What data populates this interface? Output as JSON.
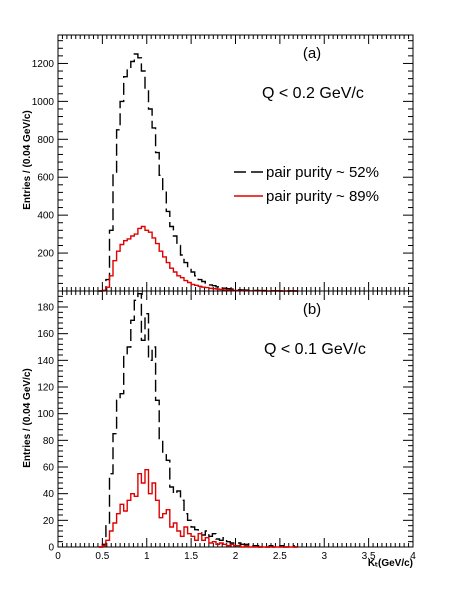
{
  "chart_data": [
    {
      "type": "histogram",
      "panel_label": "(a)",
      "annotation": "Q <  0.2 GeV/c",
      "ylabel": "Entries / (0.04 GeV/c)",
      "xlabel": "",
      "xlim": [
        0,
        4
      ],
      "ylim": [
        0,
        1350
      ],
      "bin_width": 0.04,
      "x_ticks": [],
      "y_ticks": [
        200,
        400,
        600,
        800,
        1000,
        1200
      ],
      "y_tick_labels": [
        "200",
        "400",
        "600",
        "800",
        "1000",
        "1200"
      ],
      "legend": {
        "position": "right-middle",
        "entries": [
          {
            "label": "pair purity ~ 52%",
            "color": "#000000",
            "style": "dashed"
          },
          {
            "label": "pair purity ~ 89%",
            "color": "#e00000",
            "style": "solid"
          }
        ]
      },
      "series": [
        {
          "name": "pair purity ~ 52%",
          "color": "#000000",
          "style": "dashed",
          "x": [
            0.46,
            0.5,
            0.54,
            0.58,
            0.62,
            0.66,
            0.7,
            0.74,
            0.78,
            0.82,
            0.86,
            0.9,
            0.94,
            0.98,
            1.02,
            1.06,
            1.1,
            1.14,
            1.18,
            1.22,
            1.26,
            1.3,
            1.34,
            1.38,
            1.42,
            1.46,
            1.5,
            1.54,
            1.58,
            1.62,
            1.66,
            1.7,
            1.74,
            1.78,
            1.82,
            1.86,
            1.9,
            1.94,
            1.98,
            2.02,
            2.06,
            2.1,
            2.14,
            2.18,
            2.22,
            2.26,
            2.3,
            2.34,
            2.38,
            2.42,
            2.46,
            2.5,
            2.54,
            2.58,
            2.62,
            2.66
          ],
          "values": [
            0,
            3,
            60,
            320,
            620,
            850,
            1000,
            1130,
            1170,
            1210,
            1250,
            1230,
            1160,
            1060,
            960,
            860,
            730,
            610,
            530,
            420,
            340,
            290,
            240,
            190,
            150,
            120,
            100,
            80,
            60,
            50,
            40,
            32,
            28,
            22,
            18,
            15,
            12,
            10,
            8,
            7,
            6,
            5,
            4,
            3,
            3,
            2,
            2,
            1,
            1,
            1,
            1,
            0,
            1,
            0,
            1,
            0
          ]
        },
        {
          "name": "pair purity ~ 89%",
          "color": "#e00000",
          "style": "solid",
          "x": [
            0.46,
            0.5,
            0.54,
            0.58,
            0.62,
            0.66,
            0.7,
            0.74,
            0.78,
            0.82,
            0.86,
            0.9,
            0.94,
            0.98,
            1.02,
            1.06,
            1.1,
            1.14,
            1.18,
            1.22,
            1.26,
            1.3,
            1.34,
            1.38,
            1.42,
            1.46,
            1.5,
            1.54,
            1.58,
            1.62,
            1.66,
            1.7,
            1.74,
            1.78,
            1.82,
            1.86,
            1.9,
            1.94,
            1.98,
            2.02,
            2.06,
            2.1,
            2.14,
            2.18,
            2.22,
            2.26,
            2.3,
            2.34,
            2.38,
            2.42,
            2.46,
            2.5,
            2.54,
            2.58,
            2.62,
            2.66
          ],
          "values": [
            0,
            2,
            20,
            80,
            160,
            210,
            245,
            265,
            275,
            290,
            300,
            330,
            340,
            320,
            310,
            280,
            250,
            210,
            180,
            150,
            120,
            100,
            80,
            70,
            55,
            45,
            35,
            30,
            25,
            20,
            18,
            14,
            12,
            10,
            8,
            6,
            5,
            4,
            3,
            3,
            2,
            2,
            1,
            1,
            1,
            1,
            0,
            0,
            0,
            0,
            0,
            0,
            0,
            0,
            0,
            0
          ]
        }
      ]
    },
    {
      "type": "histogram",
      "panel_label": "(b)",
      "annotation": "Q <  0.1 GeV/c",
      "ylabel": "Entries / (0.04 GeV/c)",
      "xlabel": "Kₜ(GeV/c)",
      "xlim": [
        0,
        4
      ],
      "ylim": [
        0,
        192
      ],
      "bin_width": 0.04,
      "x_ticks": [
        0,
        0.5,
        1,
        1.5,
        2,
        2.5,
        3,
        3.5,
        4
      ],
      "x_tick_labels": [
        "0",
        "0.5",
        "1",
        "1.5",
        "2",
        "2.5",
        "3",
        "3.5",
        "4"
      ],
      "y_ticks": [
        0,
        20,
        40,
        60,
        80,
        100,
        120,
        140,
        160,
        180
      ],
      "y_tick_labels": [
        "0",
        "20",
        "40",
        "60",
        "80",
        "100",
        "120",
        "140",
        "160",
        "180"
      ],
      "series": [
        {
          "name": "pair purity ~ 52%",
          "color": "#000000",
          "style": "dashed",
          "x": [
            0.46,
            0.5,
            0.54,
            0.58,
            0.62,
            0.66,
            0.7,
            0.74,
            0.78,
            0.82,
            0.86,
            0.9,
            0.94,
            0.98,
            1.02,
            1.06,
            1.1,
            1.14,
            1.18,
            1.22,
            1.26,
            1.3,
            1.34,
            1.38,
            1.42,
            1.46,
            1.5,
            1.54,
            1.58,
            1.62,
            1.66,
            1.7,
            1.74,
            1.78,
            1.82,
            1.86,
            1.9,
            1.94,
            1.98,
            2.02,
            2.06,
            2.1,
            2.14,
            2.18,
            2.22,
            2.26,
            2.3,
            2.34,
            2.38,
            2.42,
            2.46,
            2.5,
            2.54,
            2.58,
            2.62,
            2.66
          ],
          "values": [
            0,
            2,
            18,
            55,
            85,
            110,
            115,
            145,
            150,
            170,
            185,
            190,
            155,
            175,
            140,
            150,
            110,
            80,
            70,
            65,
            45,
            40,
            42,
            35,
            25,
            20,
            15,
            13,
            12,
            9,
            12,
            8,
            10,
            6,
            5,
            7,
            4,
            3,
            2,
            3,
            2,
            2,
            1,
            1,
            1,
            0,
            1,
            0,
            1,
            0,
            0,
            1,
            0,
            0,
            1,
            0
          ]
        },
        {
          "name": "pair purity ~ 89%",
          "color": "#e00000",
          "style": "solid",
          "x": [
            0.46,
            0.5,
            0.54,
            0.58,
            0.62,
            0.66,
            0.7,
            0.74,
            0.78,
            0.82,
            0.86,
            0.9,
            0.94,
            0.98,
            1.02,
            1.06,
            1.1,
            1.14,
            1.18,
            1.22,
            1.26,
            1.3,
            1.34,
            1.38,
            1.42,
            1.46,
            1.5,
            1.54,
            1.58,
            1.62,
            1.66,
            1.7,
            1.74,
            1.78,
            1.82,
            1.86,
            1.9,
            1.94,
            1.98,
            2.02,
            2.06,
            2.1,
            2.14,
            2.18,
            2.22,
            2.26,
            2.3,
            2.34,
            2.38,
            2.42,
            2.46,
            2.5,
            2.54,
            2.58,
            2.62,
            2.66
          ],
          "values": [
            0,
            1,
            5,
            12,
            18,
            25,
            32,
            27,
            35,
            40,
            38,
            55,
            48,
            58,
            40,
            48,
            35,
            22,
            25,
            28,
            15,
            18,
            12,
            8,
            15,
            10,
            8,
            5,
            10,
            5,
            7,
            3,
            4,
            2,
            3,
            2,
            1,
            2,
            1,
            1,
            0,
            1,
            0,
            0,
            0,
            0,
            0,
            0,
            0,
            0,
            0,
            0,
            0,
            0,
            0,
            0
          ]
        }
      ]
    }
  ]
}
